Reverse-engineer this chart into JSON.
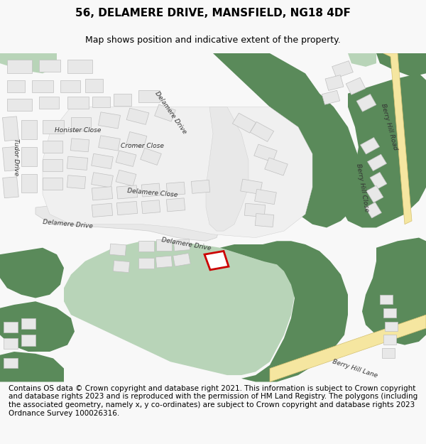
{
  "title": "56, DELAMERE DRIVE, MANSFIELD, NG18 4DF",
  "subtitle": "Map shows position and indicative extent of the property.",
  "footer": "Contains OS data © Crown copyright and database right 2021. This information is subject to Crown copyright and database rights 2023 and is reproduced with the permission of HM Land Registry. The polygons (including the associated geometry, namely x, y co-ordinates) are subject to Crown copyright and database rights 2023 Ordnance Survey 100026316.",
  "bg_color": "#f8f8f8",
  "map_bg": "#ffffff",
  "green_dark": "#5a8a5a",
  "green_light": "#b8d4b8",
  "road_yellow": "#f5e6a0",
  "road_white": "#ffffff",
  "building_color": "#e8e8e8",
  "building_edge": "#c0c0c0",
  "plot_color": "#ffffff",
  "plot_edge": "#cc0000",
  "title_fontsize": 11,
  "subtitle_fontsize": 9,
  "footer_fontsize": 7.5
}
